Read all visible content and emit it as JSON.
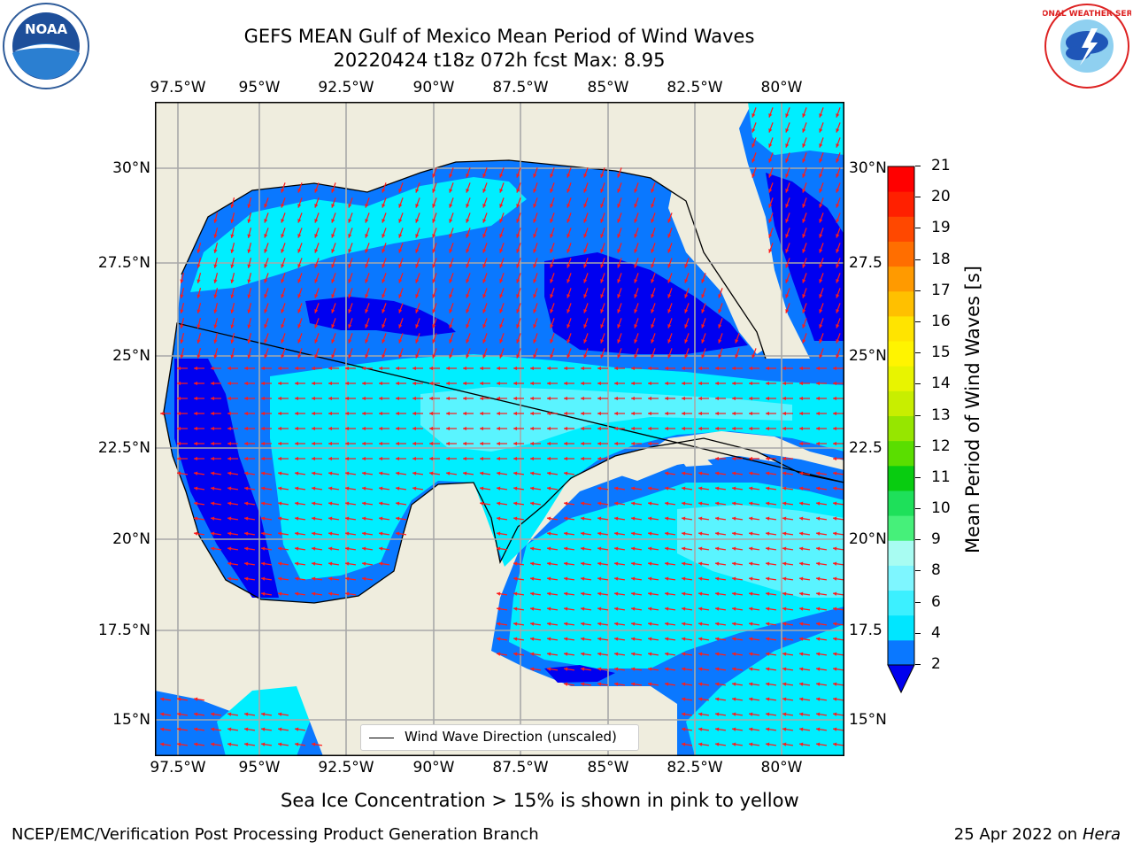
{
  "title_line1": "GEFS MEAN Gulf of Mexico Mean Period of Wind Waves",
  "title_line2": "20220424 t18z 072h fcst   Max: 8.95",
  "lon_labels": [
    "97.5°W",
    "95°W",
    "92.5°W",
    "90°W",
    "87.5°W",
    "85°W",
    "82.5°W",
    "80°W"
  ],
  "lat_labels": [
    "30°N",
    "27.5°N",
    "25°N",
    "22.5°N",
    "20°N",
    "17.5°N",
    "15°N"
  ],
  "lat_labels_right": [
    "30°N",
    "27.5",
    "25°N",
    "22.5",
    "20°N",
    "17.5",
    "15°N"
  ],
  "legend_text": "Wind Wave Direction (unscaled)",
  "colorbar": {
    "label": "Mean Period of Wind Waves [s]",
    "ticks": [
      "2",
      "4",
      "6",
      "8",
      "9",
      "10",
      "11",
      "12",
      "13",
      "14",
      "15",
      "16",
      "17",
      "18",
      "19",
      "20",
      "21"
    ],
    "colors": [
      "#0a78ff",
      "#00e6ff",
      "#3cf0ff",
      "#7ef6ff",
      "#a8fcf2",
      "#46f07a",
      "#1ee05a",
      "#08cc10",
      "#5ade00",
      "#96e600",
      "#c8ee00",
      "#e8f400",
      "#fff400",
      "#ffe400",
      "#ffc000",
      "#ff9a00",
      "#ff6e00",
      "#ff4800",
      "#ff2000",
      "#ff0000"
    ],
    "extend_color": "#0000ee"
  },
  "map_colors": {
    "land": "#efedde",
    "level_blue": "#0000f0",
    "level_mid": "#0a78ff",
    "level_cyan": "#00eeff",
    "level_light": "#5af4ff",
    "arrow": "#ff1a1a"
  },
  "sea_ice_note": "Sea Ice Concentration > 15% is shown in pink to yellow",
  "footer_left": "NCEP/EMC/Verification Post Processing Product Generation Branch",
  "footer_right_date": "25 Apr 2022 on ",
  "footer_right_host": "Hera",
  "logo_left_text": "NOAA",
  "logo_right_text": "NATIONAL WEATHER SERVICE"
}
